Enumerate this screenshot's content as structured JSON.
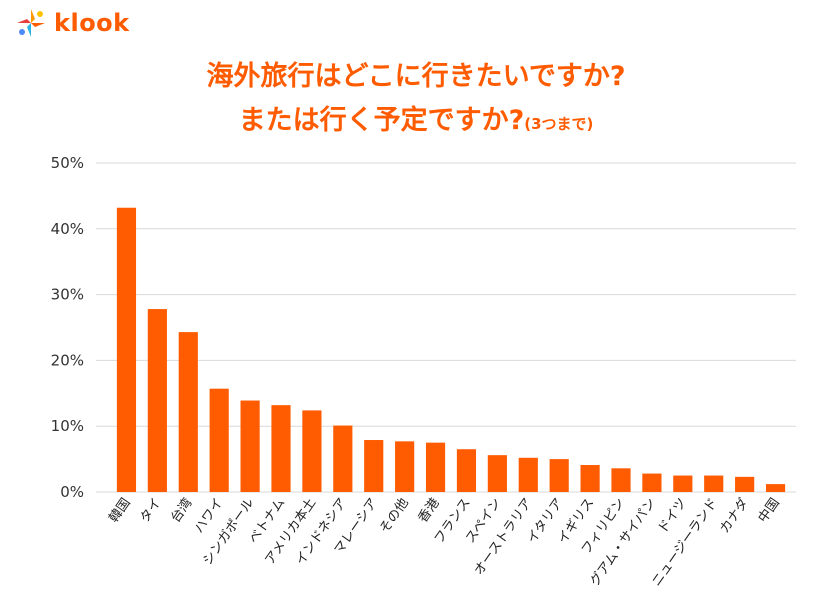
{
  "brand": {
    "name": "klook",
    "color": "#ff5b00"
  },
  "title": {
    "line1": "海外旅行はどこに行きたいですか?",
    "line2": "または行く予定ですか?",
    "note": "(3つまで)"
  },
  "colors": {
    "bar": "#ff5b00",
    "grid": "#d9d9d9",
    "title": "#ff5b00"
  },
  "chart_data": {
    "type": "bar",
    "categories": [
      "韓国",
      "タイ",
      "台湾",
      "ハワイ",
      "シンガポール",
      "ベトナム",
      "アメリカ本土",
      "インドネシア",
      "マレーシア",
      "その他",
      "香港",
      "フランス",
      "スペイン",
      "オーストラリア",
      "イタリア",
      "イギリス",
      "フィリピン",
      "グアム・サイパン",
      "ドイツ",
      "ニュージーランド",
      "カナダ",
      "中国"
    ],
    "values": [
      43.2,
      27.8,
      24.3,
      15.7,
      13.9,
      13.2,
      12.4,
      10.1,
      7.9,
      7.7,
      7.5,
      6.5,
      5.6,
      5.2,
      5.0,
      4.1,
      3.6,
      2.8,
      2.5,
      2.5,
      2.3,
      1.2
    ],
    "ylim": [
      0,
      50
    ],
    "yticks": [
      0,
      10,
      20,
      30,
      40,
      50
    ],
    "ytick_labels": [
      "0%",
      "10%",
      "20%",
      "30%",
      "40%",
      "50%"
    ],
    "grid": true,
    "xlabel": "",
    "ylabel": ""
  }
}
